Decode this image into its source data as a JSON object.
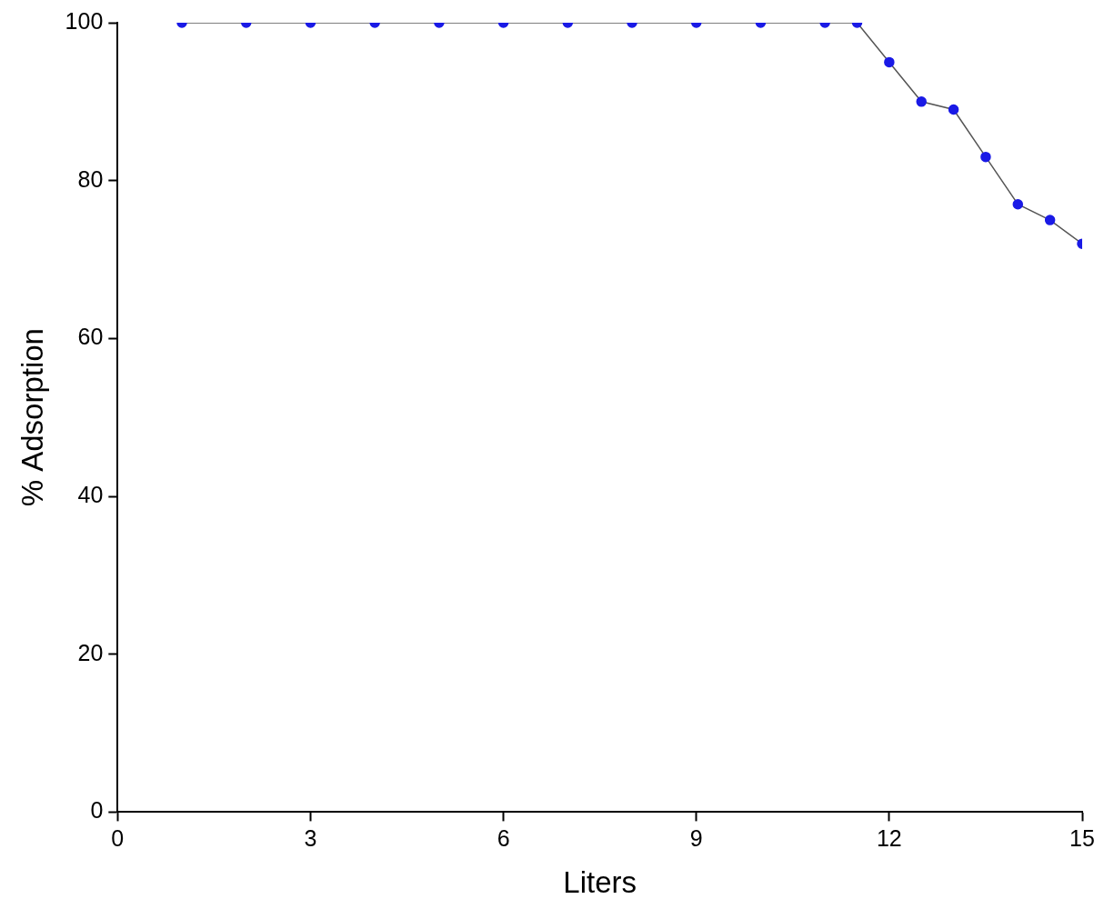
{
  "chart_data": {
    "type": "line",
    "x_label": "Liters",
    "y_label": "% Adsorption",
    "x": [
      1,
      2,
      3,
      4,
      5,
      6,
      7,
      8,
      9,
      10,
      11,
      11.5,
      12,
      12.5,
      13,
      13.5,
      14,
      14.5,
      15
    ],
    "values": [
      100,
      100,
      100,
      100,
      100,
      100,
      100,
      100,
      100,
      100,
      100,
      100,
      95,
      90,
      89,
      83,
      77,
      75,
      72
    ],
    "color": "#1a1ae6",
    "marker": "circle",
    "line_style": "solid",
    "xlim": [
      0,
      15
    ],
    "xticks": [
      0,
      3,
      6,
      9,
      12,
      15
    ],
    "ylim": [
      0,
      100
    ],
    "yticks": [
      0,
      20,
      40,
      60,
      80,
      100
    ],
    "grid": false
  }
}
